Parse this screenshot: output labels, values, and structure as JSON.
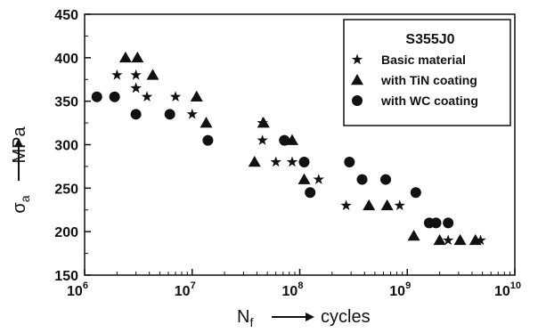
{
  "chart_data": {
    "type": "scatter",
    "xscale": "log",
    "xlim": [
      1000000,
      10000000000
    ],
    "ylim": [
      150,
      450
    ],
    "xticks": [
      {
        "value": 1000000,
        "base": "10",
        "exp": "6"
      },
      {
        "value": 10000000,
        "base": "10",
        "exp": "7"
      },
      {
        "value": 100000000,
        "base": "10",
        "exp": "8"
      },
      {
        "value": 1000000000,
        "base": "10",
        "exp": "9"
      },
      {
        "value": 10000000000,
        "base": "10",
        "exp": "10"
      }
    ],
    "yticks": [
      "150",
      "200",
      "250",
      "300",
      "350",
      "400",
      "450"
    ],
    "xlabel": {
      "main": "N",
      "sub": "f",
      "unit": "cycles"
    },
    "ylabel": {
      "main": "σ",
      "sub": "a",
      "unit": "MPa"
    },
    "grid": false,
    "legend": {
      "position": "top-right",
      "title": "S355J0"
    },
    "series": [
      {
        "name": "Basic material",
        "marker": "star",
        "x": [
          2000000,
          3000000,
          3000000,
          3000000,
          3800000,
          7000000,
          10000000,
          45000000,
          45000000,
          60000000,
          85000000,
          150000000,
          270000000,
          850000000,
          2400000000,
          4800000000
        ],
        "y": [
          380,
          380,
          365,
          365,
          355,
          355,
          335,
          325,
          305,
          280,
          280,
          260,
          230,
          230,
          190,
          190
        ]
      },
      {
        "name": "with TiN coating",
        "marker": "triangle",
        "x": [
          2400000,
          3100000,
          4300000,
          11000000,
          13500000,
          38000000,
          46000000,
          85000000,
          110000000,
          440000000,
          650000000,
          1150000000,
          2000000000,
          3100000000,
          4300000000
        ],
        "y": [
          400,
          400,
          380,
          355,
          325,
          280,
          325,
          305,
          260,
          230,
          230,
          195,
          190,
          190,
          190
        ]
      },
      {
        "name": "with WC coating",
        "marker": "circle",
        "x": [
          1300000,
          1900000,
          3000000,
          6200000,
          14000000,
          72000000,
          110000000,
          125000000,
          290000000,
          380000000,
          630000000,
          1200000000,
          1600000000,
          1850000000,
          2400000000
        ],
        "y": [
          355,
          355,
          335,
          335,
          305,
          305,
          280,
          245,
          280,
          260,
          260,
          245,
          210,
          210,
          210
        ]
      }
    ]
  }
}
